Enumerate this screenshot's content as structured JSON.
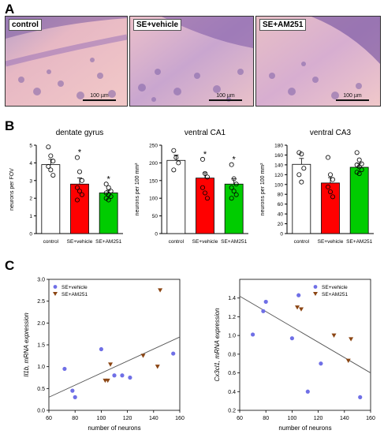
{
  "panels": {
    "a": "A",
    "b": "B",
    "c": "C"
  },
  "micrographs": [
    {
      "label": "control",
      "scale": "100 µm"
    },
    {
      "label": "SE+vehicle",
      "scale": "100 µm"
    },
    {
      "label": "SE+AM251",
      "scale": "100 µm"
    }
  ],
  "colors": {
    "control": "#ffffff",
    "vehicle": "#ff0000",
    "am251": "#00cc00",
    "vehicle_marker": "#6f6fe6",
    "am251_marker": "#8b4513"
  },
  "chart_data": [
    {
      "type": "bar",
      "title": "dentate gyrus",
      "ylabel": "neurons per FOV",
      "categories": [
        "control",
        "SE+vehicle",
        "SE+AM251"
      ],
      "values": [
        3.9,
        2.8,
        2.3
      ],
      "errors": [
        0.3,
        0.35,
        0.15
      ],
      "significance": [
        "",
        "*",
        "*"
      ],
      "points": [
        [
          4.9,
          4.4,
          4.1,
          3.8,
          3.6,
          3.3
        ],
        [
          4.3,
          3.5,
          3.0,
          2.6,
          2.4,
          2.2,
          1.9
        ],
        [
          2.8,
          2.6,
          2.4,
          2.3,
          2.2,
          2.1,
          2.0,
          1.9
        ]
      ],
      "ylim": [
        0,
        5
      ],
      "yticks": [
        "0",
        "1",
        "2",
        "3",
        "4",
        "5"
      ]
    },
    {
      "type": "bar",
      "title": "ventral CA1",
      "ylabel": "neurons per 100 mm²",
      "categories": [
        "control",
        "SE+vehicle",
        "SE+AM251"
      ],
      "values": [
        207,
        157,
        140
      ],
      "errors": [
        15,
        15,
        15
      ],
      "significance": [
        "",
        "*",
        "*"
      ],
      "points": [
        [
          235,
          215,
          200,
          180
        ],
        [
          210,
          170,
          160,
          130,
          115,
          100
        ],
        [
          195,
          155,
          140,
          130,
          120,
          110,
          100
        ]
      ],
      "ylim": [
        0,
        250
      ],
      "yticks": [
        "0",
        "50",
        "100",
        "150",
        "200",
        "250"
      ]
    },
    {
      "type": "bar",
      "title": "ventral CA3",
      "ylabel": "neurons per 100 mm²",
      "categories": [
        "control",
        "SE+vehicle",
        "SE+AM251"
      ],
      "values": [
        141,
        103,
        135
      ],
      "errors": [
        12,
        11,
        8
      ],
      "significance": [
        "",
        "",
        ""
      ],
      "points": [
        [
          165,
          162,
          133,
          120,
          105
        ],
        [
          155,
          120,
          110,
          95,
          85,
          75
        ],
        [
          165,
          150,
          142,
          140,
          136,
          130,
          125,
          122
        ]
      ],
      "ylim": [
        0,
        180
      ],
      "yticks": [
        "0",
        "20",
        "40",
        "60",
        "80",
        "100",
        "120",
        "140",
        "160",
        "180"
      ]
    },
    {
      "type": "scatter",
      "ylabel": "Il1b, mRNA expression",
      "xlabel": "number of neurons",
      "xlim": [
        60,
        160
      ],
      "ylim": [
        0,
        3
      ],
      "xticks": [
        "60",
        "80",
        "100",
        "120",
        "140",
        "160"
      ],
      "yticks": [
        "0.0",
        "0.5",
        "1.0",
        "1.5",
        "2.0",
        "2.5",
        "3.0"
      ],
      "series": [
        {
          "name": "SE+vehicle",
          "x": [
            72,
            78,
            80,
            100,
            110,
            116,
            122,
            155
          ],
          "y": [
            0.95,
            0.45,
            0.3,
            1.4,
            0.8,
            0.8,
            0.75,
            1.3
          ]
        },
        {
          "name": "SE+AM251",
          "x": [
            103,
            105,
            107,
            132,
            143,
            145
          ],
          "y": [
            0.68,
            0.68,
            1.05,
            1.25,
            1.0,
            2.75
          ]
        }
      ],
      "trend": {
        "x": [
          60,
          160
        ],
        "y": [
          0.3,
          1.68
        ]
      }
    },
    {
      "type": "scatter",
      "ylabel": "Cx3cl1, mRNA expression",
      "xlabel": "number of neurons",
      "xlim": [
        60,
        160
      ],
      "ylim": [
        0.2,
        1.6
      ],
      "xticks": [
        "60",
        "80",
        "100",
        "120",
        "140",
        "160"
      ],
      "yticks": [
        "0.2",
        "0.4",
        "0.6",
        "0.8",
        "1.0",
        "1.2",
        "1.4"
      ],
      "series": [
        {
          "name": "SE+vehicle",
          "x": [
            70,
            78,
            80,
            100,
            105,
            112,
            122,
            152
          ],
          "y": [
            1.01,
            1.26,
            1.36,
            0.97,
            1.43,
            0.4,
            0.7,
            0.34
          ]
        },
        {
          "name": "SE+AM251",
          "x": [
            104,
            107,
            132,
            143,
            145
          ],
          "y": [
            1.3,
            1.28,
            1.0,
            0.73,
            0.96
          ]
        }
      ],
      "trend": {
        "x": [
          60,
          160
        ],
        "y": [
          1.42,
          0.6
        ]
      }
    }
  ]
}
